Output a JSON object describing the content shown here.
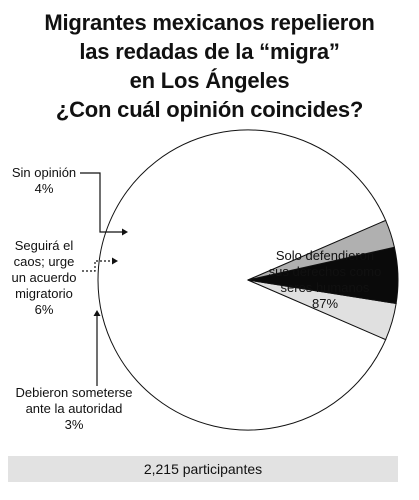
{
  "title_lines": [
    "Migrantes mexicanos repelieron",
    "las redadas de la “migra”",
    "en Los Ángeles",
    "¿Con cuál opinión coincides?"
  ],
  "chart_data": {
    "type": "pie",
    "title": "Migrantes mexicanos repelieron las redadas de la “migra” en Los Ángeles ¿Con cuál opinión coincides?",
    "slices": [
      {
        "label_lines": [
          "Solo defendieron",
          "sus derechos como",
          "seres humanos"
        ],
        "label": "Solo defendieron sus derechos como seres humanos",
        "value": 87,
        "value_label": "87%",
        "color": "#ffffff"
      },
      {
        "label_lines": [
          "Sin opinión"
        ],
        "label": "Sin opinión",
        "value": 4,
        "value_label": "4%",
        "color": "#e0e0e0"
      },
      {
        "label_lines": [
          "Seguirá el",
          "caos; urge",
          "un acuerdo",
          "migratorio"
        ],
        "label": "Seguirá el caos; urge un acuerdo migratorio",
        "value": 6,
        "value_label": "6%",
        "color": "#0a0a0a"
      },
      {
        "label_lines": [
          "Debieron someterse",
          "ante la autoridad"
        ],
        "label": "Debieron someterse ante la autoridad",
        "value": 3,
        "value_label": "3%",
        "color": "#b0b0b0"
      }
    ]
  },
  "footer": {
    "text": "2,215 participantes"
  }
}
